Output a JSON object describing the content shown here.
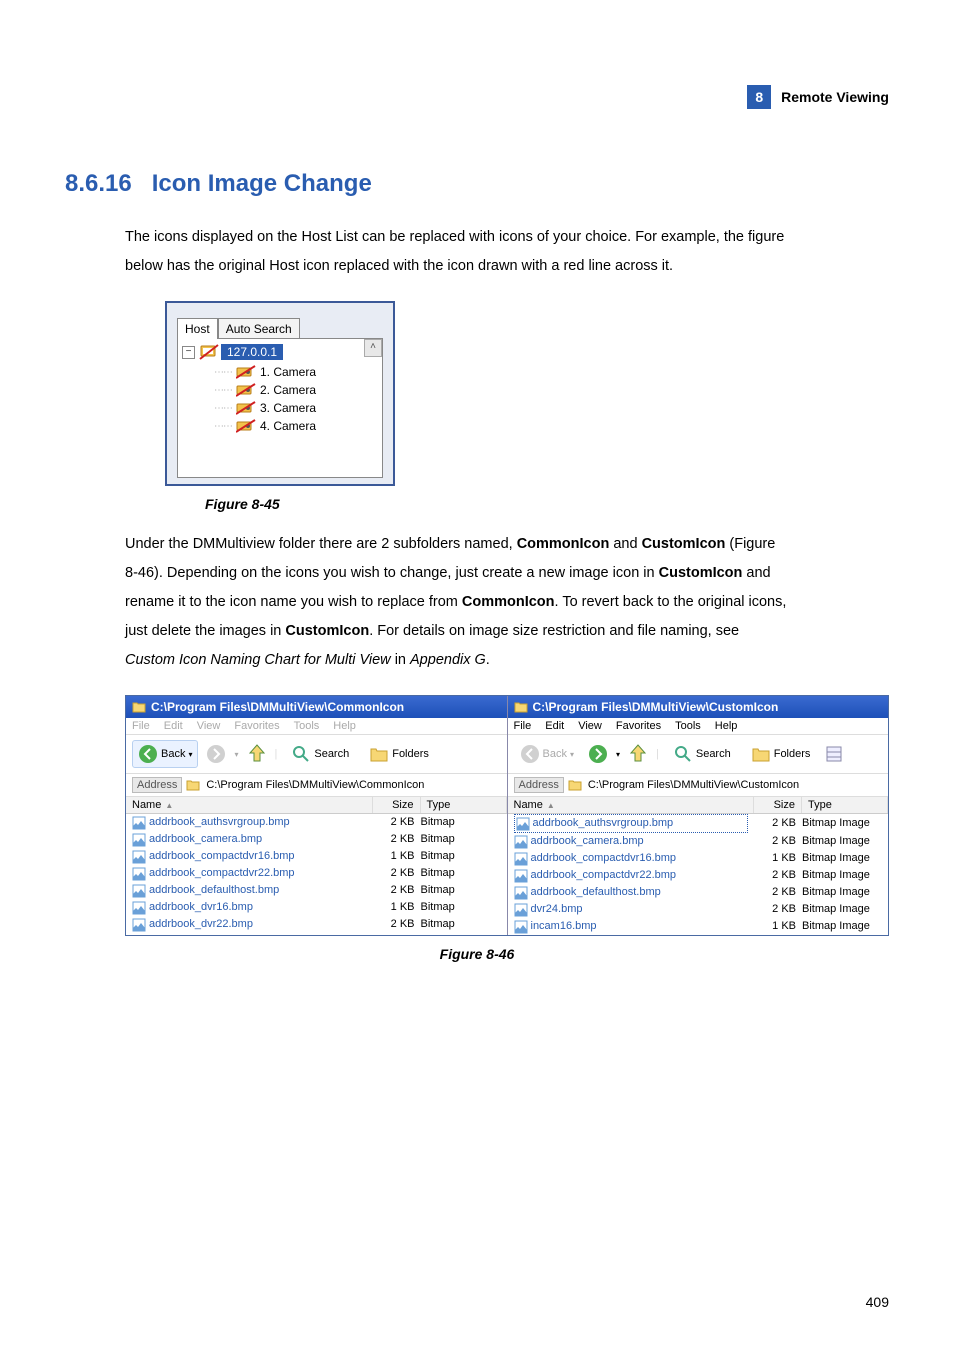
{
  "header": {
    "chapter_num": "8",
    "chapter_title": "Remote Viewing"
  },
  "section": {
    "number": "8.6.16",
    "title": "Icon Image Change"
  },
  "para1_a": "The icons displayed on the Host List can be replaced with icons of your choice. For example, the figure",
  "para1_b": "below has the original Host icon replaced with the icon drawn with a red line across it.",
  "hostlist": {
    "tabs": {
      "active": "Host",
      "inactive": "Auto Search"
    },
    "root_ip": "127.0.0.1",
    "items": [
      "1. Camera",
      "2. Camera",
      "3. Camera",
      "4. Camera"
    ]
  },
  "fig45_caption": "Figure 8-45",
  "para2": {
    "t1": "Under the DMMultiview folder there are 2 subfolders named, ",
    "b1": "CommonIcon",
    "t2": " and ",
    "b2": "CustomIcon",
    "t3": " (Figure",
    "t4": "8-46). Depending on the icons you wish to change, just create a new image icon in ",
    "b3": "CustomIcon",
    "t5": " and",
    "t6": "rename it to the icon name you wish to replace from ",
    "b4": "CommonIcon",
    "t7": ". To revert back to the original icons,",
    "t8": "just delete the images in ",
    "b5": "CustomIcon",
    "t9": ". For details on image size restriction and file naming, see",
    "i1": "Custom Icon Naming Chart for Multi View",
    "t10": " in ",
    "i2": "Appendix G",
    "t11": "."
  },
  "explorer_left": {
    "title": "C:\\Program Files\\DMMultiView\\CommonIcon",
    "menus": [
      "File",
      "Edit",
      "View",
      "Favorites",
      "Tools",
      "Help"
    ],
    "back": "Back",
    "search": "Search",
    "folders": "Folders",
    "addr_label": "Address",
    "address": "C:\\Program Files\\DMMultiView\\CommonIcon",
    "cols": {
      "name": "Name",
      "size": "Size",
      "type": "Type"
    },
    "files": [
      {
        "n": "addrbook_authsvrgroup.bmp",
        "s": "2 KB",
        "t": "Bitmap"
      },
      {
        "n": "addrbook_camera.bmp",
        "s": "2 KB",
        "t": "Bitmap"
      },
      {
        "n": "addrbook_compactdvr16.bmp",
        "s": "1 KB",
        "t": "Bitmap"
      },
      {
        "n": "addrbook_compactdvr22.bmp",
        "s": "2 KB",
        "t": "Bitmap"
      },
      {
        "n": "addrbook_defaulthost.bmp",
        "s": "2 KB",
        "t": "Bitmap"
      },
      {
        "n": "addrbook_dvr16.bmp",
        "s": "1 KB",
        "t": "Bitmap"
      },
      {
        "n": "addrbook_dvr22.bmp",
        "s": "2 KB",
        "t": "Bitmap"
      }
    ]
  },
  "explorer_right": {
    "title": "C:\\Program Files\\DMMultiView\\CustomIcon",
    "menus": [
      "File",
      "Edit",
      "View",
      "Favorites",
      "Tools",
      "Help"
    ],
    "back": "Back",
    "search": "Search",
    "folders": "Folders",
    "addr_label": "Address",
    "address": "C:\\Program Files\\DMMultiView\\CustomIcon",
    "cols": {
      "name": "Name",
      "size": "Size",
      "type": "Type"
    },
    "files": [
      {
        "n": "addrbook_authsvrgroup.bmp",
        "s": "2 KB",
        "t": "Bitmap Image"
      },
      {
        "n": "addrbook_camera.bmp",
        "s": "2 KB",
        "t": "Bitmap Image"
      },
      {
        "n": "addrbook_compactdvr16.bmp",
        "s": "1 KB",
        "t": "Bitmap Image"
      },
      {
        "n": "addrbook_compactdvr22.bmp",
        "s": "2 KB",
        "t": "Bitmap Image"
      },
      {
        "n": "addrbook_defaulthost.bmp",
        "s": "2 KB",
        "t": "Bitmap Image"
      },
      {
        "n": "dvr24.bmp",
        "s": "2 KB",
        "t": "Bitmap Image"
      },
      {
        "n": "incam16.bmp",
        "s": "1 KB",
        "t": "Bitmap Image"
      }
    ]
  },
  "fig46_caption": "Figure 8-46",
  "page_number": "409"
}
